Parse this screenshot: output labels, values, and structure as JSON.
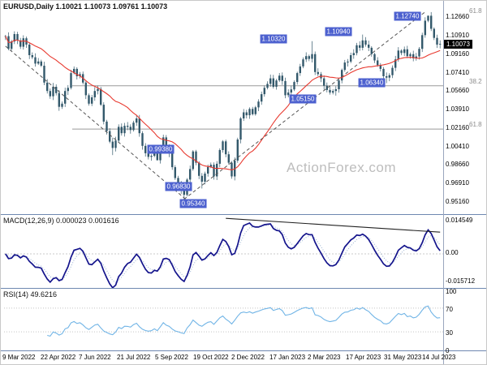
{
  "header": {
    "title": "EURUSD,Daily 1.10021 1.10073 1.09761 1.10073"
  },
  "watermark": "ActionForex.com",
  "colors": {
    "background": "#ffffff",
    "candle": "#33596b",
    "ma": "#e8392f",
    "macd_line": "#14148c",
    "macd_signal": "#9fb6d4",
    "rsi": "#70b4e6",
    "callout_bg": "#4d61cf",
    "price_box_bg": "#000000",
    "separator": "#6e88b0",
    "axis_separator": "#9aa6bd",
    "fib_line": "#9a9a9a",
    "fib_label": "#8c8c8c",
    "trendline": "#555555",
    "macd_trendline": "#222222",
    "watermark": "#bdbdbd"
  },
  "main_panel": {
    "y_axis_labels": [
      "1.12660",
      "1.10910",
      "1.09160",
      "1.07410",
      "1.05660",
      "1.03910",
      "1.02160",
      "1.00410",
      "0.98660",
      "0.96910",
      "0.95160"
    ],
    "current_price": "1.10073",
    "fib_levels": [
      {
        "label": "61.8",
        "price": 1.1274,
        "draw_line": false
      },
      {
        "label": "38.2",
        "price": 1.0609,
        "draw_line": true
      },
      {
        "label": "61.8",
        "price": 1.0199,
        "draw_line": true
      }
    ],
    "callouts": [
      {
        "text": "1.10320",
        "i": 90,
        "price": 1.1055
      },
      {
        "text": "1.10940",
        "i": 112,
        "price": 1.1124
      },
      {
        "text": "1.12740",
        "i": 135,
        "price": 1.1272
      },
      {
        "text": "1.06340",
        "i": 123,
        "price": 1.0641
      },
      {
        "text": "1.05150",
        "i": 100,
        "price": 1.0487
      },
      {
        "text": "0.99380",
        "i": 52,
        "price": 1.0005
      },
      {
        "text": "0.96830",
        "i": 58,
        "price": 0.9652
      },
      {
        "text": "0.95340",
        "i": 63,
        "price": 0.9495
      }
    ],
    "trendlines": [
      {
        "i1": 0,
        "p1": 1.0985,
        "i2": 64,
        "p2": 0.945
      },
      {
        "i1": 60,
        "p1": 0.9534,
        "i2": 141,
        "p2": 1.131
      }
    ]
  },
  "macd_panel": {
    "title": "MACD(12,26,9) 0.000023 0.001616",
    "y_axis_labels": [
      "0.014549",
      "0.00",
      "-0.015712"
    ],
    "trendline": {
      "i1": 74,
      "v1": 0.0152,
      "i2": 146,
      "v2": 0.0093
    }
  },
  "rsi_panel": {
    "title": "RSI(14) 49.6216",
    "y_axis_labels": [
      "100",
      "70",
      "30",
      "0"
    ],
    "levels": [
      70,
      30
    ]
  },
  "x_axis": {
    "labels": [
      "9 Mar 2022",
      "22 Apr 2022",
      "7 Jun 2022",
      "21 Jul 2022",
      "5 Sep 2022",
      "19 Oct 2022",
      "2 Dec 2022",
      "17 Jan 2023",
      "2 Mar 2023",
      "17 Apr 2023",
      "31 May 2023",
      "14 Jul 2023"
    ]
  },
  "chart_data": {
    "type": "candlestick",
    "symbol": "EURUSD",
    "timeframe": "Daily",
    "ohlc": {
      "open": 1.10021,
      "high": 1.10073,
      "low": 1.09761,
      "close": 1.10073
    },
    "price_range": {
      "min": 0.94,
      "max": 1.14
    },
    "closes": [
      1.108,
      1.096,
      1.103,
      1.11,
      1.104,
      1.098,
      1.106,
      1.1,
      1.09,
      1.088,
      1.082,
      1.084,
      1.08,
      1.064,
      1.056,
      1.051,
      1.06,
      1.054,
      1.041,
      1.044,
      1.056,
      1.059,
      1.073,
      1.077,
      1.07,
      1.072,
      1.064,
      1.052,
      1.044,
      1.05,
      1.056,
      1.058,
      1.043,
      1.027,
      1.018,
      1.008,
      1.002,
      1.009,
      1.022,
      1.016,
      1.023,
      1.022,
      1.019,
      1.026,
      1.03,
      1.016,
      1.004,
      0.997,
      0.9935,
      0.9945,
      0.999,
      0.9903,
      1.0,
      1.012,
      1.002,
      0.997,
      0.9838,
      0.9735,
      0.969,
      0.962,
      0.9575,
      0.972,
      0.982,
      0.9987,
      0.988,
      0.9755,
      0.97,
      0.9777,
      0.984,
      0.9861,
      0.975,
      0.987,
      1.0,
      1.0082,
      0.996,
      0.988,
      0.975,
      0.99,
      1.01,
      1.03,
      1.0358,
      1.033,
      1.039,
      1.034,
      1.0405,
      1.046,
      1.053,
      1.059,
      1.0628,
      1.068,
      1.06,
      1.066,
      1.0705,
      1.0655,
      1.052,
      1.0545,
      1.0575,
      1.0645,
      1.073,
      1.0793,
      1.086,
      1.0891,
      1.0865,
      1.091,
      1.074,
      1.072,
      1.068,
      1.061,
      1.057,
      1.0545,
      1.056,
      1.0577,
      1.066,
      1.076,
      1.083,
      1.0839,
      1.09,
      1.092,
      1.0994,
      1.097,
      1.104,
      1.1,
      1.097,
      1.091,
      1.085,
      1.0805,
      1.077,
      1.07,
      1.0687,
      1.071,
      1.078,
      1.086,
      1.0944,
      1.092,
      1.0955,
      1.089,
      1.0909,
      1.087,
      1.0888,
      1.096,
      1.109,
      1.1227,
      1.1274,
      1.115,
      1.1064,
      1.1,
      1.1007
    ],
    "wick_overrides": {
      "36": {
        "low": 0.9952
      },
      "47": {
        "low": 0.9938
      },
      "51": {
        "low": 0.9903
      },
      "58": {
        "low": 0.9683
      },
      "60": {
        "low": 0.9534
      },
      "66": {
        "low": 0.9635
      },
      "103": {
        "high": 1.1033
      },
      "111": {
        "low": 1.0516
      },
      "120": {
        "high": 1.1095
      },
      "128": {
        "low": 1.0635
      },
      "142": {
        "high": 1.1276
      }
    },
    "ma_period": 20,
    "indicators": {
      "macd": {
        "fast": 12,
        "slow": 26,
        "signal": 9,
        "value": 2.3e-05,
        "signal_value": 0.001616,
        "axis_max": 0.014549,
        "axis_min": -0.015712,
        "render_hints": {
          "fast": 5,
          "slow": 10,
          "signal": 4,
          "display_max": 0.0145
        }
      },
      "rsi": {
        "period": 14,
        "value": 49.6216,
        "levels": [
          70,
          30
        ],
        "axis": [
          100,
          70,
          30,
          0
        ]
      }
    },
    "key_levels": [
      1.1274,
      1.1094,
      1.1032,
      1.0634,
      1.0515,
      0.9938,
      0.9683,
      0.9534
    ],
    "fib_retracements": [
      {
        "label": "61.8",
        "price": 1.1274
      },
      {
        "label": "38.2",
        "price": 1.0609
      },
      {
        "label": "61.8",
        "price": 1.0199
      }
    ]
  }
}
